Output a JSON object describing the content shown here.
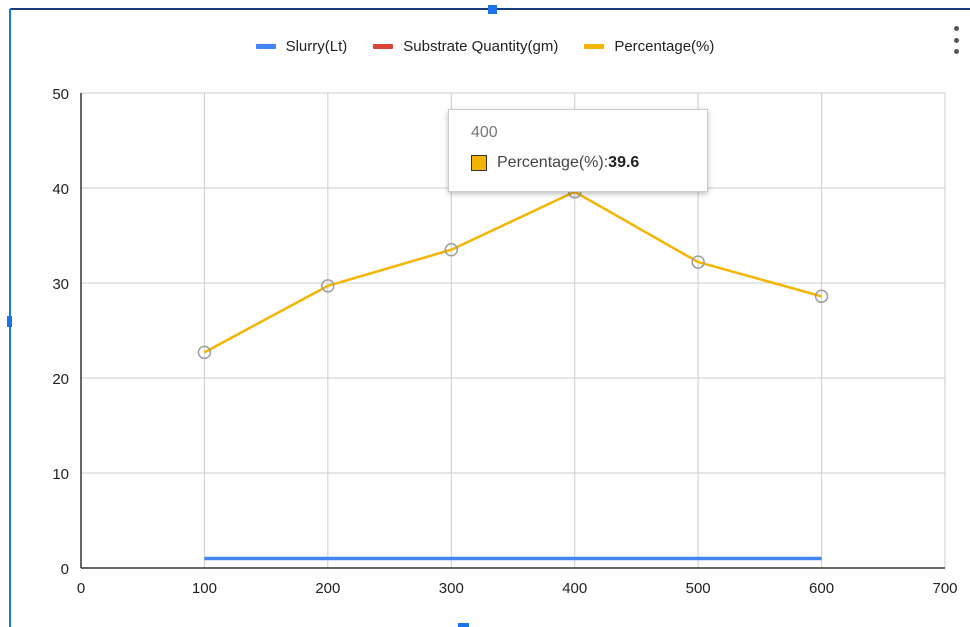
{
  "chart_data": {
    "type": "line",
    "x": [
      100,
      200,
      300,
      400,
      500,
      600
    ],
    "series": [
      {
        "name": "Slurry(Lt)",
        "color": "#4285f4",
        "values": [
          1,
          1,
          1,
          1,
          1,
          1
        ]
      },
      {
        "name": "Substrate Quantity(gm)",
        "color": "#db4437",
        "values": [
          null,
          null,
          null,
          null,
          null,
          null
        ]
      },
      {
        "name": "Percentage(%)",
        "color": "#f4b400",
        "values": [
          22.7,
          29.7,
          33.5,
          39.6,
          32.2,
          28.6
        ],
        "points": true
      }
    ],
    "xlim": [
      0,
      700
    ],
    "ylim": [
      0,
      50
    ],
    "xticks": [
      "0",
      "100",
      "200",
      "300",
      "400",
      "500",
      "600",
      "700"
    ],
    "yticks": [
      "0",
      "10",
      "20",
      "30",
      "40",
      "50"
    ],
    "grid": true,
    "legend_position": "top"
  },
  "tooltip": {
    "title": "400",
    "series_label": "Percentage(%)",
    "separator": ": ",
    "value": "39.6",
    "color": "#f4b400"
  }
}
